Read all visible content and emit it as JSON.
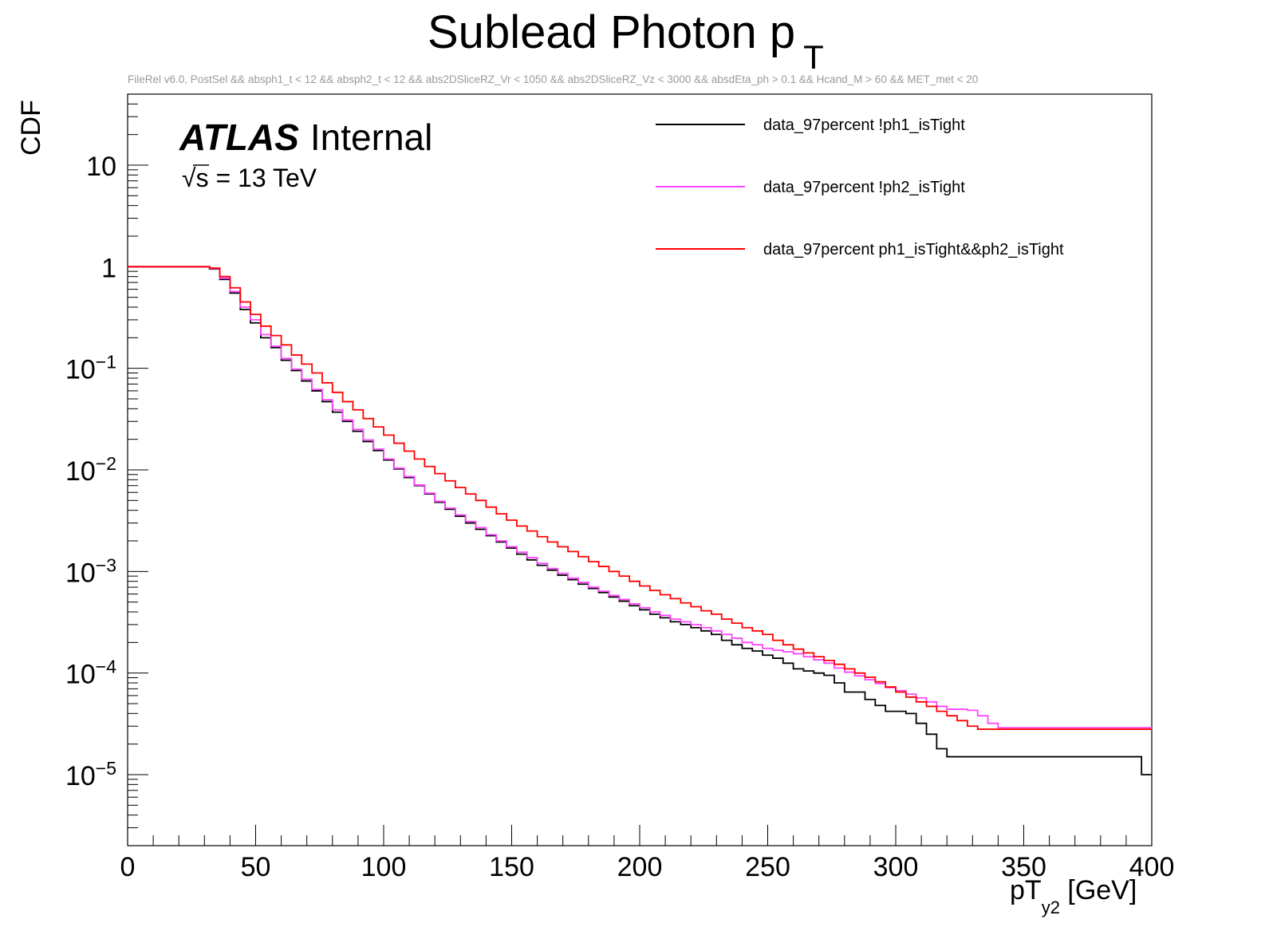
{
  "chart_data": {
    "type": "line",
    "style": "histogram-step",
    "title": "Sublead Photon p",
    "title_subscript": "T",
    "subtitle": "FileRel v6.0, PostSel &&  absph1_t < 12 && absph2_t < 12 && abs2DSliceRZ_Vr < 1050 && abs2DSliceRZ_Vz < 3000 && absdEta_ph > 0.1 && Hcand_M > 60 && MET_met < 20",
    "xlabel": "pT",
    "xlabel_subscript": "y2",
    "xlabel_unit": " [GeV]",
    "ylabel": "CDF",
    "xlim": [
      0,
      400
    ],
    "ylim": [
      2e-06,
      50
    ],
    "yscale": "log",
    "x_ticks": [
      "0",
      "50",
      "100",
      "150",
      "200",
      "250",
      "300",
      "350",
      "400"
    ],
    "y_ticks": [
      {
        "base": "10",
        "exp": "−5",
        "value": 1e-05
      },
      {
        "base": "10",
        "exp": "−4",
        "value": 0.0001
      },
      {
        "base": "10",
        "exp": "−3",
        "value": 0.001
      },
      {
        "base": "10",
        "exp": "−2",
        "value": 0.01
      },
      {
        "base": "10",
        "exp": "−1",
        "value": 0.1
      },
      {
        "base": "1",
        "exp": "",
        "value": 1
      },
      {
        "base": "10",
        "exp": "",
        "value": 10
      }
    ],
    "atlas_label": "ATLAS",
    "atlas_status": "Internal",
    "energy_label": "s = 13 TeV",
    "sqrt_symbol": "√",
    "legend_position": "top-right",
    "bin_width": 4,
    "series": [
      {
        "name": "data_97percent !ph1_isTight",
        "color": "#000000",
        "values": [
          1,
          1,
          1,
          1,
          1,
          1,
          1,
          1,
          0.95,
          0.75,
          0.55,
          0.38,
          0.28,
          0.2,
          0.16,
          0.12,
          0.095,
          0.075,
          0.06,
          0.047,
          0.037,
          0.03,
          0.024,
          0.019,
          0.0155,
          0.0125,
          0.0102,
          0.0084,
          0.007,
          0.0058,
          0.0048,
          0.0041,
          0.0035,
          0.003,
          0.0026,
          0.00225,
          0.00195,
          0.0017,
          0.00148,
          0.0013,
          0.00115,
          0.00103,
          0.00092,
          0.00083,
          0.00075,
          0.00068,
          0.00062,
          0.00056,
          0.00051,
          0.00046,
          0.00042,
          0.00038,
          0.00035,
          0.00032,
          0.0003,
          0.00028,
          0.00026,
          0.00024,
          0.00021,
          0.00019,
          0.000175,
          0.000165,
          0.00015,
          0.00014,
          0.000125,
          0.00011,
          0.000105,
          0.0001,
          9.5e-05,
          8e-05,
          6.5e-05,
          6.5e-05,
          5.5e-05,
          4.8e-05,
          4.2e-05,
          4.2e-05,
          4e-05,
          3.2e-05,
          2.5e-05,
          1.8e-05,
          1.5e-05,
          1.5e-05,
          1.5e-05,
          1.5e-05,
          1.5e-05,
          1.5e-05,
          1.5e-05,
          1.5e-05,
          1.5e-05,
          1.5e-05,
          1.5e-05,
          1.5e-05,
          1.5e-05,
          1.5e-05,
          1.5e-05,
          1.5e-05,
          1.5e-05,
          1.5e-05,
          1.5e-05,
          1e-05
        ]
      },
      {
        "name": "data_97percent !ph2_isTight",
        "color": "#ff44ff",
        "values": [
          1,
          1,
          1,
          1,
          1,
          1,
          1,
          1,
          0.96,
          0.77,
          0.57,
          0.4,
          0.3,
          0.215,
          0.165,
          0.125,
          0.098,
          0.078,
          0.062,
          0.049,
          0.039,
          0.031,
          0.025,
          0.0197,
          0.016,
          0.0128,
          0.0104,
          0.0086,
          0.0071,
          0.0059,
          0.0049,
          0.0042,
          0.0036,
          0.0031,
          0.0027,
          0.0023,
          0.002,
          0.00175,
          0.00155,
          0.00137,
          0.0012,
          0.00107,
          0.00096,
          0.00086,
          0.00078,
          0.0007,
          0.00064,
          0.00058,
          0.00053,
          0.00048,
          0.00044,
          0.0004,
          0.00037,
          0.00034,
          0.00032,
          0.0003,
          0.00028,
          0.00026,
          0.00024,
          0.00022,
          0.0002,
          0.00019,
          0.000175,
          0.000168,
          0.000162,
          0.000155,
          0.000145,
          0.000135,
          0.000125,
          0.000112,
          0.000102,
          9.4e-05,
          8.6e-05,
          7.9e-05,
          7.2e-05,
          6.7e-05,
          6.2e-05,
          5.7e-05,
          5.2e-05,
          4.7e-05,
          4.4e-05,
          4.4e-05,
          4.3e-05,
          3.8e-05,
          3.2e-05,
          2.9e-05,
          2.9e-05,
          2.9e-05,
          2.9e-05,
          2.9e-05,
          2.9e-05,
          2.9e-05,
          2.9e-05,
          2.9e-05,
          2.9e-05,
          2.9e-05,
          2.9e-05,
          2.9e-05,
          2.9e-05,
          2.9e-05
        ]
      },
      {
        "name": "data_97percent ph1_isTight&&ph2_isTight",
        "color": "#ff0000",
        "values": [
          1,
          1,
          1,
          1,
          1,
          1,
          1,
          1,
          0.97,
          0.8,
          0.62,
          0.45,
          0.34,
          0.26,
          0.21,
          0.17,
          0.135,
          0.11,
          0.09,
          0.072,
          0.058,
          0.047,
          0.039,
          0.032,
          0.0265,
          0.022,
          0.0183,
          0.0153,
          0.0128,
          0.0108,
          0.0092,
          0.0078,
          0.0067,
          0.0058,
          0.005,
          0.0043,
          0.0037,
          0.0032,
          0.0028,
          0.0025,
          0.0022,
          0.00195,
          0.00175,
          0.00157,
          0.0014,
          0.00125,
          0.00112,
          0.001,
          0.0009,
          0.0008,
          0.00072,
          0.00065,
          0.00059,
          0.00054,
          0.00049,
          0.00045,
          0.00041,
          0.00038,
          0.00034,
          0.00031,
          0.00028,
          0.00026,
          0.00024,
          0.00021,
          0.00019,
          0.000172,
          0.000158,
          0.000145,
          0.000133,
          0.000122,
          0.00011,
          0.0001,
          9.1e-05,
          8.2e-05,
          7.3e-05,
          6.5e-05,
          5.8e-05,
          5.2e-05,
          4.7e-05,
          4.2e-05,
          3.8e-05,
          3.4e-05,
          3e-05,
          2.8e-05,
          2.8e-05,
          2.8e-05,
          2.8e-05,
          2.8e-05,
          2.8e-05,
          2.8e-05,
          2.8e-05,
          2.8e-05,
          2.8e-05,
          2.8e-05,
          2.8e-05,
          2.8e-05,
          2.8e-05,
          2.8e-05,
          2.8e-05,
          2.8e-05
        ]
      }
    ]
  }
}
